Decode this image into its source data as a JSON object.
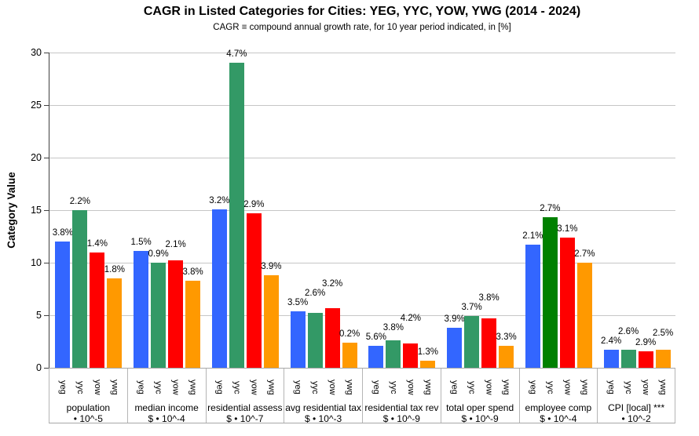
{
  "chart_data": {
    "type": "bar",
    "title": "CAGR in Listed Categories for Cities: YEG, YYC, YOW, YWG (2014 - 2024)",
    "subtitle": "CAGR ≡ compound annual growth rate, for 10 year period indicated, in [%]",
    "ylabel": "Category Value",
    "ylim": [
      0,
      30
    ],
    "yticks": [
      0,
      5,
      10,
      15,
      20,
      25,
      30
    ],
    "grid": "horizontal-gray",
    "legend_position": "none",
    "series_names": [
      "yeg",
      "yyc",
      "yow",
      "ywg"
    ],
    "series_colors": {
      "yeg": "#3366ff",
      "yyc": "#339966",
      "yow": "#ff0000",
      "ywg": "#ff9900"
    },
    "categories": [
      {
        "label": "population",
        "unit": "• 10^-5",
        "bars": [
          {
            "city": "yeg",
            "value": 12.0,
            "cagr_label": "3.8%"
          },
          {
            "city": "yyc",
            "value": 15.0,
            "cagr_label": "2.2%"
          },
          {
            "city": "yow",
            "value": 11.0,
            "cagr_label": "1.4%"
          },
          {
            "city": "ywg",
            "value": 8.5,
            "cagr_label": "1.8%"
          }
        ]
      },
      {
        "label": "median income",
        "unit": "$ • 10^-4",
        "bars": [
          {
            "city": "yeg",
            "value": 11.1,
            "cagr_label": "1.5%"
          },
          {
            "city": "yyc",
            "value": 10.0,
            "cagr_label": "0.9%"
          },
          {
            "city": "yow",
            "value": 10.2,
            "cagr_label": "2.1%"
          },
          {
            "city": "ywg",
            "value": 8.3,
            "cagr_label": "3.8%"
          }
        ]
      },
      {
        "label": "residential assess",
        "unit": "$ • 10^-7",
        "bars": [
          {
            "city": "yeg",
            "value": 15.1,
            "cagr_label": "3.2%"
          },
          {
            "city": "yyc",
            "value": 29.0,
            "cagr_label": "4.7%"
          },
          {
            "city": "yow",
            "value": 14.7,
            "cagr_label": "2.9%"
          },
          {
            "city": "ywg",
            "value": 8.8,
            "cagr_label": "3.9%"
          }
        ]
      },
      {
        "label": "avg residential tax",
        "unit": "$ • 10^-3",
        "bars": [
          {
            "city": "yeg",
            "value": 5.4,
            "cagr_label": "3.5%"
          },
          {
            "city": "yyc",
            "value": 5.2,
            "cagr_label": "2.6%"
          },
          {
            "city": "yow",
            "value": 5.7,
            "cagr_label": "3.2%"
          },
          {
            "city": "ywg",
            "value": 2.4,
            "cagr_label": "0.2%"
          }
        ]
      },
      {
        "label": "residential tax rev",
        "unit": "$ • 10^-9",
        "bars": [
          {
            "city": "yeg",
            "value": 2.1,
            "cagr_label": "5.6%"
          },
          {
            "city": "yyc",
            "value": 2.6,
            "cagr_label": "3.8%"
          },
          {
            "city": "yow",
            "value": 2.3,
            "cagr_label": "4.2%"
          },
          {
            "city": "ywg",
            "value": 0.7,
            "cagr_label": "1.3%"
          }
        ]
      },
      {
        "label": "total oper spend",
        "unit": "$ • 10^-9",
        "bars": [
          {
            "city": "yeg",
            "value": 3.8,
            "cagr_label": "3.9%"
          },
          {
            "city": "yyc",
            "value": 4.9,
            "cagr_label": "3.7%"
          },
          {
            "city": "yow",
            "value": 4.7,
            "cagr_label": "3.8%"
          },
          {
            "city": "ywg",
            "value": 2.1,
            "cagr_label": "3.3%"
          }
        ]
      },
      {
        "label": "employee comp",
        "unit": "$ • 10^-4",
        "bars": [
          {
            "city": "yeg",
            "value": 11.7,
            "cagr_label": "2.1%"
          },
          {
            "city": "yyc",
            "value": 14.3,
            "cagr_label": "2.7%",
            "color": "#008000"
          },
          {
            "city": "yow",
            "value": 12.4,
            "cagr_label": "3.1%"
          },
          {
            "city": "ywg",
            "value": 10.0,
            "cagr_label": "2.7%"
          }
        ]
      },
      {
        "label": "CPI [local] ***",
        "unit": "• 10^-2",
        "bars": [
          {
            "city": "yeg",
            "value": 1.7,
            "cagr_label": "2.4%"
          },
          {
            "city": "yyc",
            "value": 1.7,
            "cagr_label": "2.6%"
          },
          {
            "city": "yow",
            "value": 1.6,
            "cagr_label": "2.9%"
          },
          {
            "city": "ywg",
            "value": 1.7,
            "cagr_label": "2.5%"
          }
        ]
      }
    ]
  }
}
